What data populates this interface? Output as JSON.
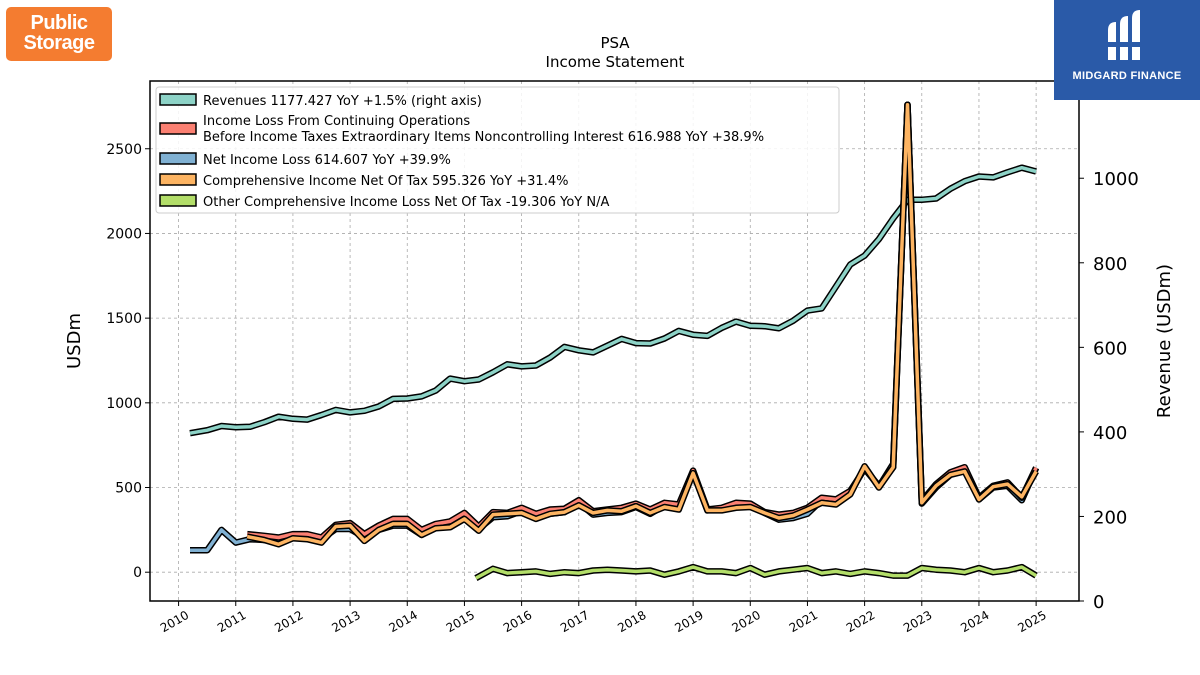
{
  "logos": {
    "left_line1": "Public",
    "left_line2": "Storage",
    "right_text": "MIDGARD FINANCE"
  },
  "colors": {
    "revenues": "#8dd3c7",
    "income_loss_continuing": "#fb8072",
    "net_income_loss": "#80b1d3",
    "comprehensive_income": "#fdb462",
    "other_comprehensive": "#b3de69",
    "public_storage_brand": "#f47c30",
    "midgard_brand": "#2a5aa8"
  },
  "chart_data": {
    "type": "line",
    "title": "PSA",
    "subtitle": "Income Statement",
    "ylabel": "USDm",
    "ylabel_right": "Revenue (USDm)",
    "ylim": [
      -170,
      2900
    ],
    "ylim_right": [
      0,
      1230
    ],
    "yticks": [
      0,
      500,
      1000,
      1500,
      2000,
      2500
    ],
    "yticks_right": [
      0,
      200,
      400,
      600,
      800,
      1000
    ],
    "xlim": [
      2009.5,
      2025.75
    ],
    "xticks": [
      2010,
      2011,
      2012,
      2013,
      2014,
      2015,
      2016,
      2017,
      2018,
      2019,
      2020,
      2021,
      2022,
      2023,
      2024,
      2025
    ],
    "grid": true,
    "legend_position": "top-left",
    "series": [
      {
        "name": "Revenues  1177.427 YoY +1.5% (right axis)",
        "axis": "right",
        "color": "#8dd3c7",
        "x": [
          2010.2,
          2010.5,
          2010.75,
          2011.0,
          2011.25,
          2011.5,
          2011.75,
          2012.0,
          2012.25,
          2012.5,
          2012.75,
          2013.0,
          2013.25,
          2013.5,
          2013.75,
          2014.0,
          2014.25,
          2014.5,
          2014.75,
          2015.0,
          2015.25,
          2015.5,
          2015.75,
          2016.0,
          2016.25,
          2016.5,
          2016.75,
          2017.0,
          2017.25,
          2017.5,
          2017.75,
          2018.0,
          2018.25,
          2018.5,
          2018.75,
          2019.0,
          2019.25,
          2019.5,
          2019.75,
          2020.0,
          2020.25,
          2020.5,
          2020.75,
          2021.0,
          2021.25,
          2021.5,
          2021.75,
          2022.0,
          2022.25,
          2022.5,
          2022.75,
          2023.0,
          2023.25,
          2023.5,
          2023.75,
          2024.0,
          2024.25,
          2024.5,
          2024.75,
          2025.0
        ],
        "values": [
          397,
          404,
          414,
          411,
          412,
          423,
          436,
          431,
          429,
          440,
          452,
          446,
          450,
          460,
          478,
          479,
          484,
          498,
          526,
          520,
          524,
          541,
          560,
          555,
          557,
          576,
          601,
          593,
          588,
          604,
          620,
          610,
          609,
          621,
          639,
          630,
          627,
          646,
          661,
          651,
          650,
          645,
          663,
          687,
          692,
          744,
          796,
          817,
          856,
          905,
          949,
          949,
          952,
          975,
          993,
          1004,
          1002,
          1014,
          1025,
          1016
        ]
      },
      {
        "name": "Income Loss From Continuing Operations\nBefore Income Taxes Extraordinary Items Noncontrolling Interest  616.988 YoY +38.9%",
        "axis": "left",
        "color": "#fb8072",
        "x": [
          2011.2,
          2011.5,
          2011.75,
          2012.0,
          2012.25,
          2012.5,
          2012.75,
          2013.0,
          2013.25,
          2013.5,
          2013.75,
          2014.0,
          2014.25,
          2014.5,
          2014.75,
          2015.0,
          2015.25,
          2015.5,
          2015.75,
          2016.0,
          2016.25,
          2016.5,
          2016.75,
          2017.0,
          2017.25,
          2017.5,
          2017.75,
          2018.0,
          2018.25,
          2018.5,
          2018.75,
          2019.0,
          2019.25,
          2019.5,
          2019.75,
          2020.0,
          2020.25,
          2020.5,
          2020.75,
          2021.0,
          2021.25,
          2021.5,
          2021.75,
          2022.0,
          2022.25,
          2022.5,
          2022.75,
          2023.0,
          2023.25,
          2023.5,
          2023.75,
          2024.0,
          2024.25,
          2024.5,
          2024.75,
          2025.0
        ],
        "values": [
          225,
          215,
          205,
          225,
          225,
          205,
          280,
          290,
          225,
          275,
          315,
          315,
          250,
          285,
          300,
          350,
          270,
          355,
          350,
          380,
          345,
          370,
          375,
          425,
          360,
          370,
          380,
          405,
          370,
          410,
          400,
          600,
          370,
          380,
          410,
          405,
          355,
          340,
          350,
          380,
          440,
          430,
          480,
          610,
          510,
          620,
          2760,
          420,
          520,
          590,
          620,
          440,
          510,
          530,
          440,
          617
        ]
      },
      {
        "name": "Net Income Loss  614.607 YoY +39.9%",
        "axis": "left",
        "color": "#80b1d3",
        "x": [
          2010.2,
          2010.5,
          2010.75,
          2011.0,
          2011.25,
          2011.5,
          2011.75,
          2012.0,
          2012.25,
          2012.5,
          2012.75,
          2013.0,
          2013.25,
          2013.5,
          2013.75,
          2014.0,
          2014.25,
          2014.5,
          2014.75,
          2015.0,
          2015.25,
          2015.5,
          2015.75,
          2016.0,
          2016.25,
          2016.5,
          2016.75,
          2017.0,
          2017.25,
          2017.5,
          2017.75,
          2018.0,
          2018.25,
          2018.5,
          2018.75,
          2019.0,
          2019.25,
          2019.5,
          2019.75,
          2020.0,
          2020.25,
          2020.5,
          2020.75,
          2021.0,
          2021.25,
          2021.5,
          2021.75,
          2022.0,
          2022.25,
          2022.5,
          2022.75,
          2023.0,
          2023.25,
          2023.5,
          2023.75,
          2024.0,
          2024.25,
          2024.5,
          2024.75,
          2025.0
        ],
        "values": [
          130,
          130,
          250,
          175,
          195,
          190,
          185,
          220,
          220,
          195,
          255,
          255,
          205,
          250,
          275,
          275,
          220,
          265,
          290,
          330,
          255,
          325,
          330,
          360,
          320,
          345,
          355,
          410,
          340,
          350,
          355,
          385,
          345,
          395,
          385,
          590,
          365,
          375,
          400,
          395,
          350,
          310,
          320,
          345,
          425,
          410,
          470,
          615,
          505,
          640,
          2760,
          405,
          500,
          575,
          605,
          430,
          500,
          510,
          425,
          615
        ]
      },
      {
        "name": "Comprehensive Income Net Of Tax  595.326 YoY +31.4%",
        "axis": "left",
        "color": "#fdb462",
        "x": [
          2011.2,
          2011.5,
          2011.75,
          2012.0,
          2012.25,
          2012.5,
          2012.75,
          2013.0,
          2013.25,
          2013.5,
          2013.75,
          2014.0,
          2014.25,
          2014.5,
          2014.75,
          2015.0,
          2015.25,
          2015.5,
          2015.75,
          2016.0,
          2016.25,
          2016.5,
          2016.75,
          2017.0,
          2017.25,
          2017.5,
          2017.75,
          2018.0,
          2018.25,
          2018.5,
          2018.75,
          2019.0,
          2019.25,
          2019.5,
          2019.75,
          2020.0,
          2020.25,
          2020.5,
          2020.75,
          2021.0,
          2021.25,
          2021.5,
          2021.75,
          2022.0,
          2022.25,
          2022.5,
          2022.75,
          2023.0,
          2023.25,
          2023.5,
          2023.75,
          2024.0,
          2024.25,
          2024.5,
          2024.75,
          2025.0
        ],
        "values": [
          210,
          190,
          165,
          200,
          195,
          175,
          270,
          275,
          185,
          250,
          285,
          285,
          220,
          260,
          265,
          315,
          245,
          340,
          345,
          350,
          315,
          345,
          355,
          395,
          350,
          365,
          360,
          390,
          350,
          385,
          370,
          585,
          365,
          365,
          380,
          385,
          350,
          320,
          335,
          370,
          410,
          400,
          460,
          625,
          500,
          620,
          2760,
          410,
          510,
          575,
          595,
          430,
          505,
          520,
          445,
          595
        ]
      },
      {
        "name": "Other Comprehensive Income Loss Net Of Tax  -19.306 YoY N/A",
        "axis": "left",
        "color": "#b3de69",
        "x": [
          2015.2,
          2015.5,
          2015.75,
          2016.0,
          2016.25,
          2016.5,
          2016.75,
          2017.0,
          2017.25,
          2017.5,
          2017.75,
          2018.0,
          2018.25,
          2018.5,
          2018.75,
          2019.0,
          2019.25,
          2019.5,
          2019.75,
          2020.0,
          2020.25,
          2020.5,
          2020.75,
          2021.0,
          2021.25,
          2021.5,
          2021.75,
          2022.0,
          2022.25,
          2022.5,
          2022.75,
          2023.0,
          2023.25,
          2023.5,
          2023.75,
          2024.0,
          2024.25,
          2024.5,
          2024.75,
          2025.0
        ],
        "values": [
          -35,
          20,
          -5,
          0,
          5,
          -10,
          0,
          -5,
          10,
          15,
          10,
          5,
          10,
          -15,
          5,
          30,
          5,
          5,
          -5,
          25,
          -15,
          5,
          15,
          25,
          -5,
          5,
          -10,
          5,
          -5,
          -20,
          -20,
          25,
          15,
          10,
          0,
          25,
          0,
          10,
          30,
          -20
        ]
      }
    ]
  }
}
